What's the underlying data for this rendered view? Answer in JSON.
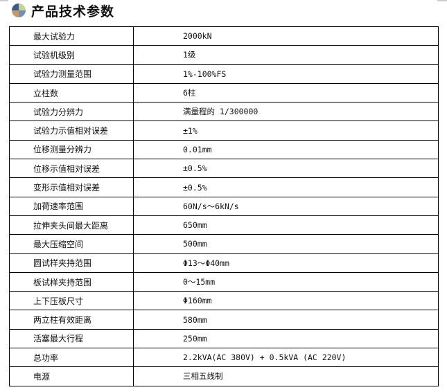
{
  "header": {
    "title": "产品技术参数",
    "icon": "pie-quadrant-icon"
  },
  "rows": [
    {
      "label": "最大试验力",
      "value": "2000kN"
    },
    {
      "label": "试验机级别",
      "value": "1级"
    },
    {
      "label": "试验力测量范围",
      "value": "1%-100%FS"
    },
    {
      "label": "立柱数",
      "value": "6柱"
    },
    {
      "label": "试验力分辨力",
      "value": "满量程的 1/300000"
    },
    {
      "label": "试验力示值相对误差",
      "value": "±1%"
    },
    {
      "label": "位移测量分辨力",
      "value": "0.01mm"
    },
    {
      "label": "位移示值相对误差",
      "value": "±0.5%"
    },
    {
      "label": "变形示值相对误差",
      "value": "±0.5%"
    },
    {
      "label": "加荷速率范围",
      "value": "60N/s～6kN/s"
    },
    {
      "label": "拉伸夹头间最大距离",
      "value": "650mm"
    },
    {
      "label": "最大压缩空间",
      "value": "500mm"
    },
    {
      "label": "圆试样夹持范围",
      "value": "Φ13～Φ40mm"
    },
    {
      "label": "板试样夹持范围",
      "value": "0～15mm"
    },
    {
      "label": "上下压板尺寸",
      "value": "Φ160mm"
    },
    {
      "label": "两立柱有效距离",
      "value": "580mm"
    },
    {
      "label": "活塞最大行程",
      "value": "250mm"
    },
    {
      "label": "总功率",
      "value": "2.2kVA(AC 380V) + 0.5kVA (AC 220V)"
    },
    {
      "label": "电源",
      "value": "三相五线制"
    }
  ]
}
